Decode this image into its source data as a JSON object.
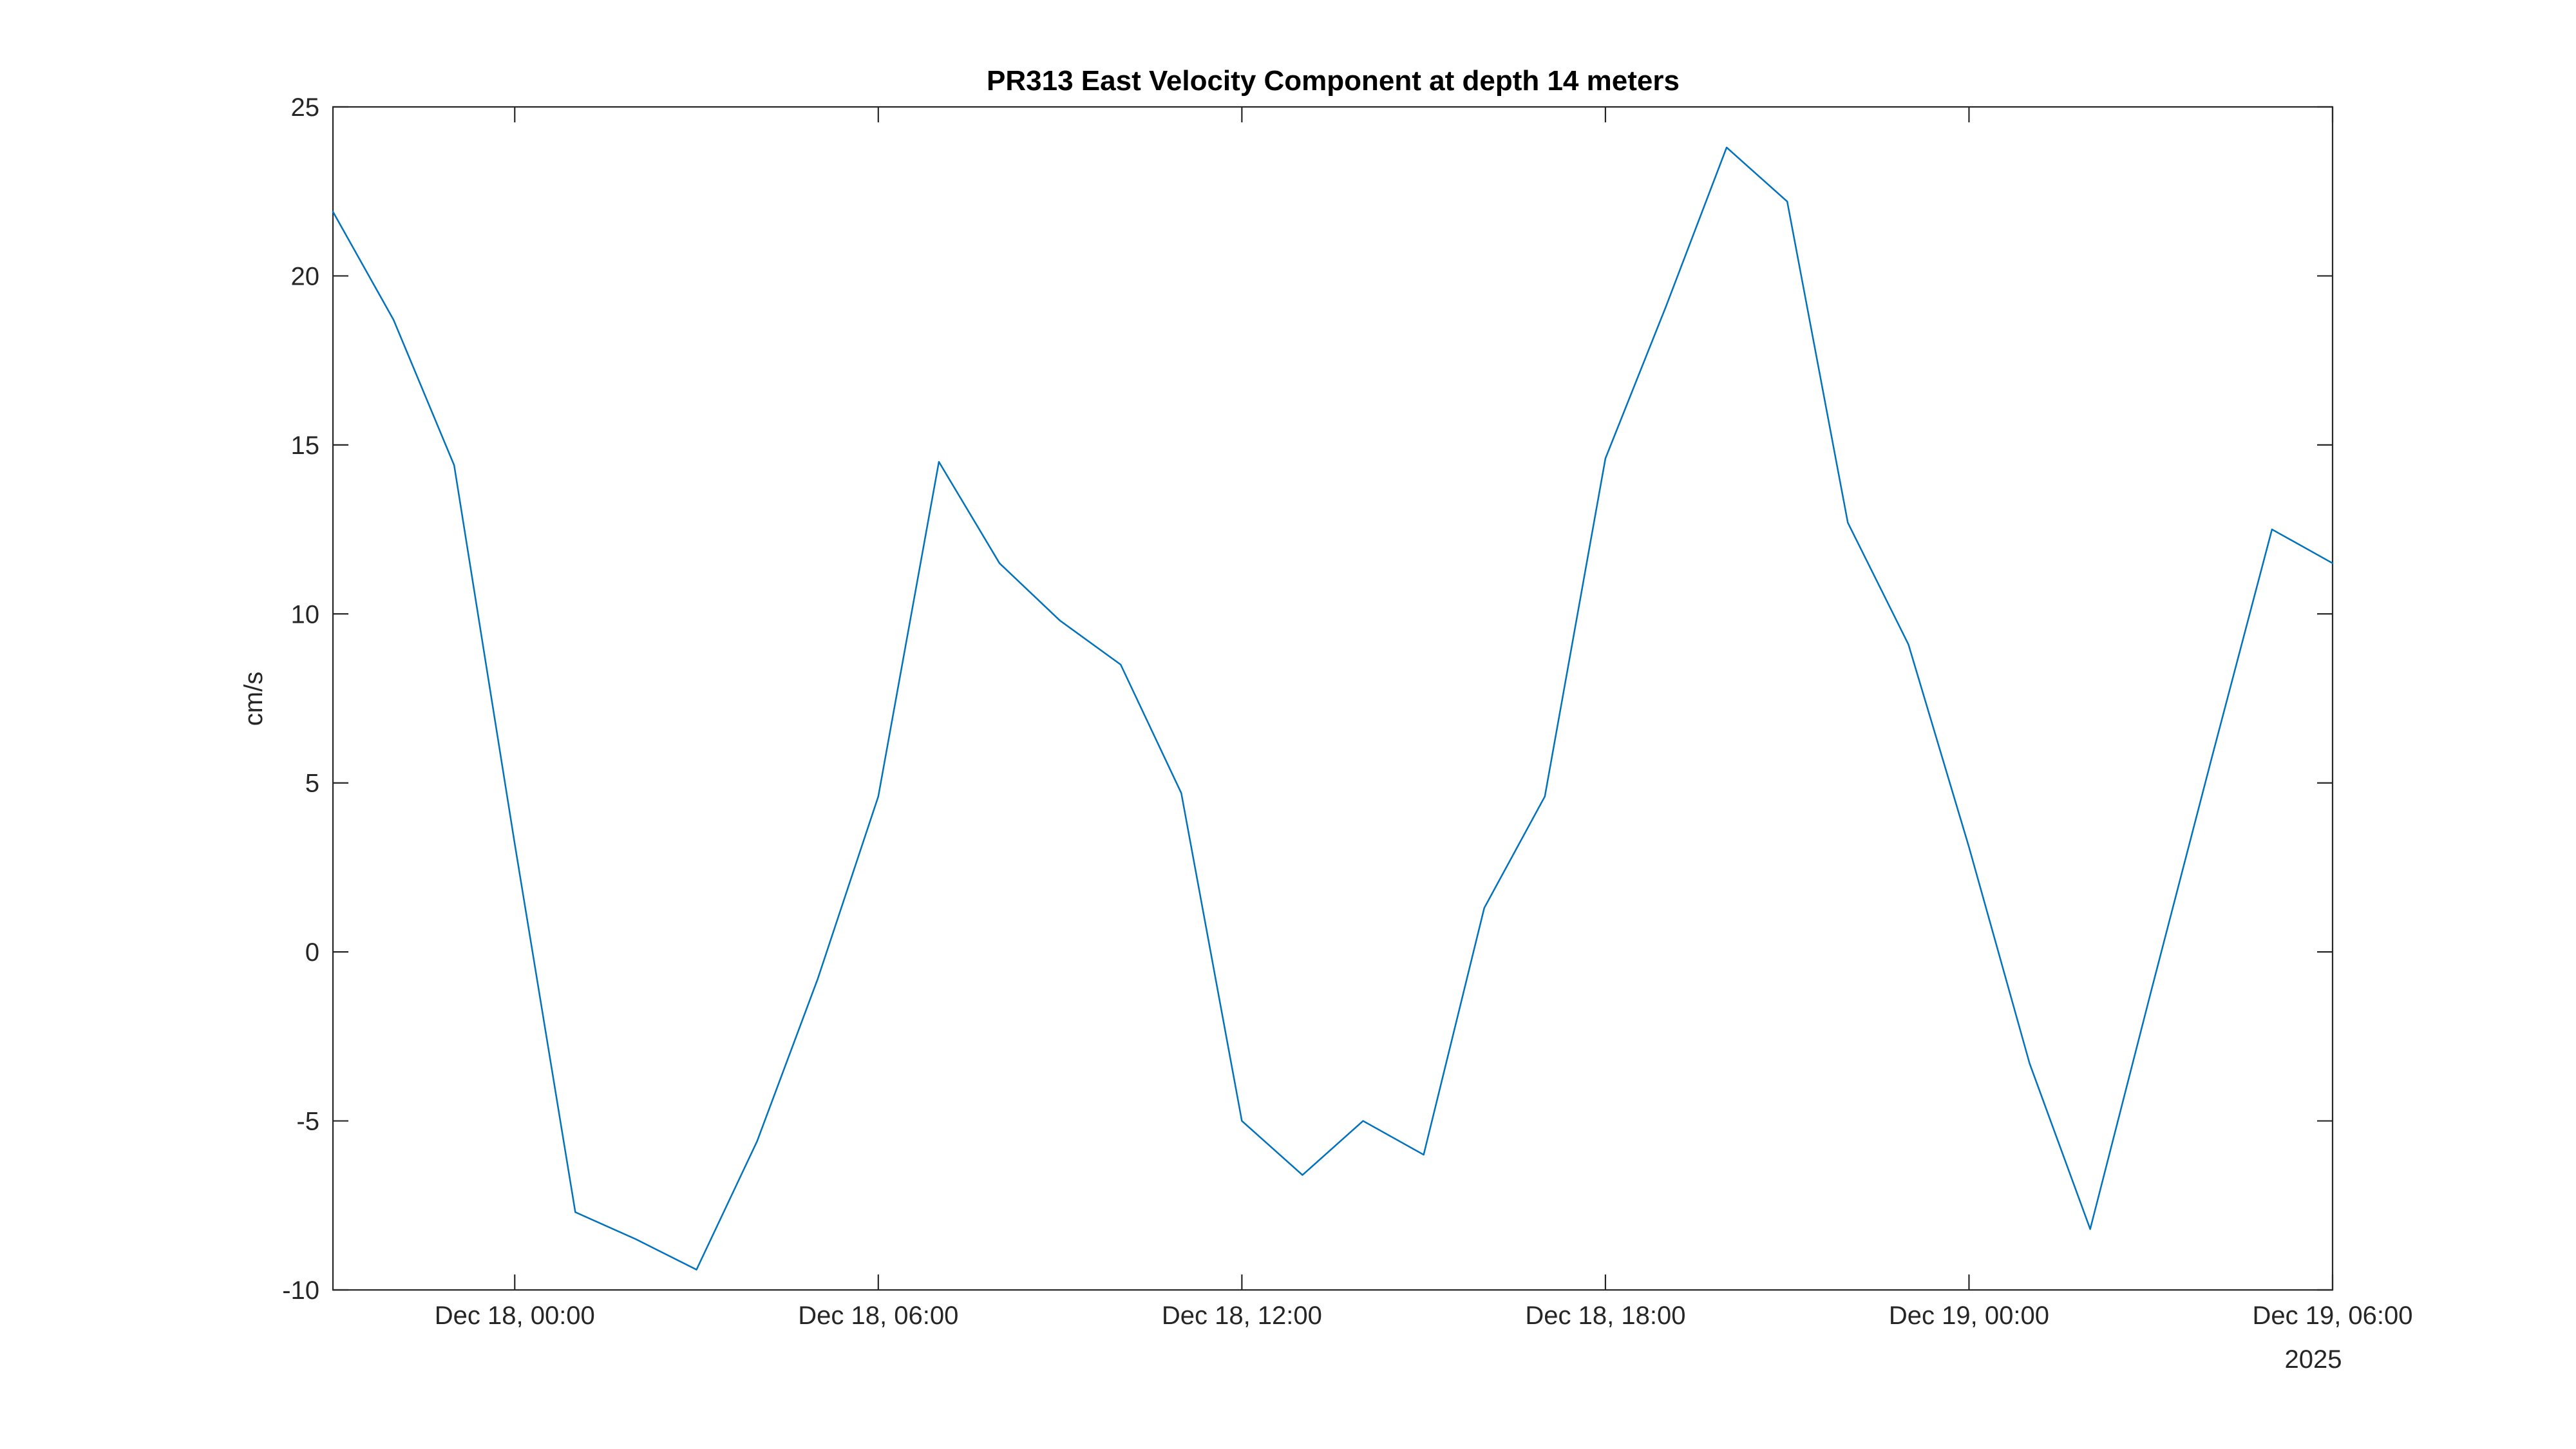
{
  "chart_data": {
    "type": "line",
    "title": "PR313 East Velocity Component at depth 14 meters",
    "ylabel": "cm/s",
    "xlabel_secondary": "2025",
    "grid": false,
    "legend": null,
    "line_color": "#0072BD",
    "axis_color": "#262626",
    "background_color": "#ffffff",
    "ylim": [
      -10,
      25
    ],
    "yticks": [
      -10,
      -5,
      0,
      5,
      10,
      15,
      20,
      25
    ],
    "ytick_labels": [
      "-10",
      "-5",
      "0",
      "5",
      "10",
      "15",
      "20",
      "25"
    ],
    "xtick_indices": [
      3,
      9,
      15,
      21,
      27,
      33
    ],
    "xtick_labels": [
      "Dec 18, 00:00",
      "Dec 18, 06:00",
      "Dec 18, 12:00",
      "Dec 18, 18:00",
      "Dec 19, 00:00",
      "Dec 19, 06:00"
    ],
    "x_interval_hours": 1,
    "x": [
      "Dec 17 21:00",
      "Dec 17 22:00",
      "Dec 17 23:00",
      "Dec 18 00:00",
      "Dec 18 01:00",
      "Dec 18 02:00",
      "Dec 18 03:00",
      "Dec 18 04:00",
      "Dec 18 05:00",
      "Dec 18 06:00",
      "Dec 18 07:00",
      "Dec 18 08:00",
      "Dec 18 09:00",
      "Dec 18 10:00",
      "Dec 18 11:00",
      "Dec 18 12:00",
      "Dec 18 13:00",
      "Dec 18 14:00",
      "Dec 18 15:00",
      "Dec 18 16:00",
      "Dec 18 17:00",
      "Dec 18 18:00",
      "Dec 18 19:00",
      "Dec 18 20:00",
      "Dec 18 21:00",
      "Dec 18 22:00",
      "Dec 18 23:00",
      "Dec 19 00:00",
      "Dec 19 01:00",
      "Dec 19 02:00",
      "Dec 19 03:00",
      "Dec 19 04:00",
      "Dec 19 05:00",
      "Dec 19 06:00"
    ],
    "values": [
      21.9,
      18.7,
      14.4,
      3.2,
      -7.7,
      -8.5,
      -9.4,
      -5.6,
      -0.8,
      4.6,
      14.5,
      11.5,
      9.8,
      8.5,
      4.7,
      -5.0,
      -6.6,
      -5.0,
      -6.0,
      1.3,
      4.6,
      14.6,
      19.1,
      23.8,
      22.2,
      12.7,
      9.1,
      3.1,
      -3.3,
      -8.2,
      -1.2,
      5.7,
      12.5,
      11.5
    ]
  }
}
